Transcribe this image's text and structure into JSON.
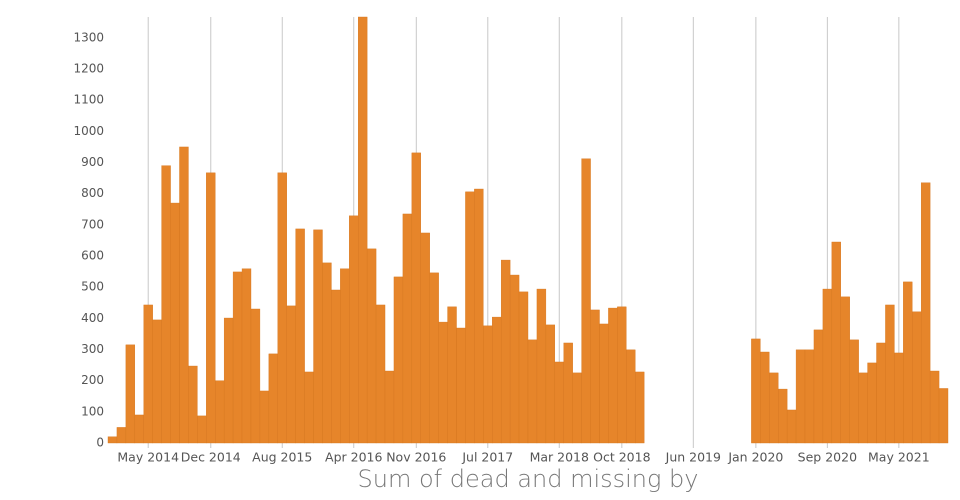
{
  "chart_data": {
    "type": "bar",
    "xlabel": "Sum of dead and missing by",
    "color": "#e6852a",
    "x": [
      "2014-01",
      "2014-02",
      "2014-03",
      "2014-04",
      "2014-05",
      "2014-06",
      "2014-07",
      "2014-08",
      "2014-09",
      "2014-10",
      "2014-11",
      "2014-12",
      "2015-01",
      "2015-02",
      "2015-03",
      "2015-04",
      "2015-05",
      "2015-06",
      "2015-07",
      "2015-08",
      "2015-09",
      "2015-10",
      "2015-11",
      "2015-12",
      "2016-01",
      "2016-02",
      "2016-03",
      "2016-04",
      "2016-05",
      "2016-06",
      "2016-07",
      "2016-08",
      "2016-09",
      "2016-10",
      "2016-11",
      "2016-12",
      "2017-01",
      "2017-02",
      "2017-03",
      "2017-04",
      "2017-05",
      "2017-06",
      "2017-07",
      "2017-08",
      "2017-09",
      "2017-10",
      "2017-11",
      "2017-12",
      "2018-01",
      "2018-02",
      "2018-03",
      "2018-04",
      "2018-05",
      "2018-06",
      "2018-07",
      "2018-08",
      "2018-09",
      "2018-10",
      "2018-11",
      "2018-12",
      "2020-01",
      "2020-02",
      "2020-03",
      "2020-04",
      "2020-05",
      "2020-06",
      "2020-07",
      "2020-08",
      "2020-09",
      "2020-10",
      "2020-11",
      "2020-12",
      "2021-01",
      "2021-02",
      "2021-03",
      "2021-04",
      "2021-05",
      "2021-06",
      "2021-07",
      "2021-08",
      "2021-09",
      "2021-10"
    ],
    "values": [
      20,
      50,
      315,
      90,
      443,
      395,
      890,
      770,
      950,
      247,
      87,
      867,
      200,
      401,
      549,
      559,
      430,
      167,
      286,
      867,
      440,
      687,
      228,
      684,
      578,
      491,
      559,
      729,
      1367,
      623,
      443,
      231,
      533,
      735,
      931,
      674,
      546,
      388,
      437,
      369,
      806,
      815,
      376,
      404,
      587,
      539,
      485,
      331,
      494,
      379,
      260,
      321,
      225,
      912,
      427,
      382,
      433,
      437,
      299,
      228,
      334,
      292,
      225,
      173,
      106,
      299,
      299,
      363,
      494,
      645,
      469,
      331,
      225,
      257,
      321,
      443,
      289,
      517,
      421,
      835,
      231,
      175
    ],
    "xlim": [
      "2014-01",
      "2021-10"
    ],
    "xticks": [
      {
        "value": "2014-05",
        "label": "May 2014"
      },
      {
        "value": "2014-12",
        "label": "Dec 2014"
      },
      {
        "value": "2015-08",
        "label": "Aug 2015"
      },
      {
        "value": "2016-04",
        "label": "Apr 2016"
      },
      {
        "value": "2016-11",
        "label": "Nov 2016"
      },
      {
        "value": "2017-07",
        "label": "Jul 2017"
      },
      {
        "value": "2018-03",
        "label": "Mar 2018"
      },
      {
        "value": "2018-10",
        "label": "Oct 2018"
      },
      {
        "value": "2019-06",
        "label": "Jun 2019"
      },
      {
        "value": "2020-01",
        "label": "Jan 2020"
      },
      {
        "value": "2020-09",
        "label": "Sep 2020"
      },
      {
        "value": "2021-05",
        "label": "May 2021"
      }
    ],
    "ylim": [
      0,
      1367
    ],
    "yticks": [
      0,
      100,
      200,
      300,
      400,
      500,
      600,
      700,
      800,
      900,
      1000,
      1100,
      1200,
      1300
    ],
    "grid": "x"
  }
}
